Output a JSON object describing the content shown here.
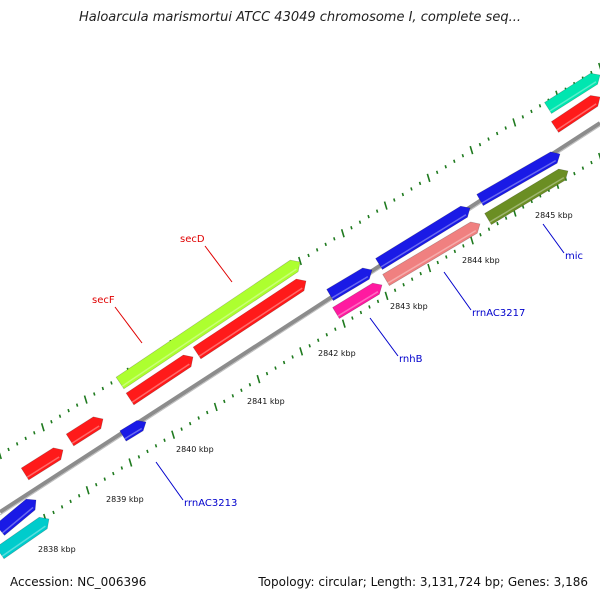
{
  "title": "Haloarcula marismortui ATCC 43049 chromosome I, complete seq...",
  "footer": {
    "accession": "Accession: NC_006396",
    "summary": "Topology: circular; Length: 3,131,724 bp; Genes: 3,186"
  },
  "colors": {
    "backbone": "#8c8c8c",
    "tick": "#1f7a1f",
    "label_red": "#e00000",
    "label_blue": "#0000cc"
  },
  "ticks": [
    {
      "label": "2838 kbp"
    },
    {
      "label": "2839 kbp"
    },
    {
      "label": "2840 kbp"
    },
    {
      "label": "2841 kbp"
    },
    {
      "label": "2842 kbp"
    },
    {
      "label": "2843 kbp"
    },
    {
      "label": "2844 kbp"
    },
    {
      "label": "2845 kbp"
    }
  ],
  "labels": [
    {
      "text": "secD",
      "color": "#e00000"
    },
    {
      "text": "secF",
      "color": "#e00000"
    },
    {
      "text": "rrnAC3213",
      "color": "#0000cc"
    },
    {
      "text": "rnhB",
      "color": "#0000cc"
    },
    {
      "text": "rrnAC3217",
      "color": "#0000cc"
    },
    {
      "text": "mic",
      "color": "#0000cc"
    }
  ],
  "features": [
    {
      "color": "#00e6b0",
      "strand": "outer2"
    },
    {
      "color": "#ff1a1a",
      "strand": "outer1"
    },
    {
      "color": "#1a1ae6",
      "strand": "outer1"
    },
    {
      "color": "#6b8e23",
      "strand": "inner1"
    },
    {
      "color": "#1a1ae6",
      "strand": "outer1"
    },
    {
      "color": "#f08080",
      "strand": "inner1"
    },
    {
      "color": "#1a1ae6",
      "strand": "outer1"
    },
    {
      "color": "#ff1aa0",
      "strand": "inner1"
    },
    {
      "color": "#adff2f",
      "strand": "outer2"
    },
    {
      "color": "#ff1a1a",
      "strand": "outer1"
    },
    {
      "color": "#ff1a1a",
      "strand": "outer1"
    },
    {
      "color": "#ff1a1a",
      "strand": "outer1"
    },
    {
      "color": "#ff1a1a",
      "strand": "outer1"
    },
    {
      "color": "#1a1ae6",
      "strand": "inner1"
    },
    {
      "color": "#1a1ae6",
      "strand": "outer1"
    },
    {
      "color": "#00cccc",
      "strand": "inner1"
    }
  ]
}
